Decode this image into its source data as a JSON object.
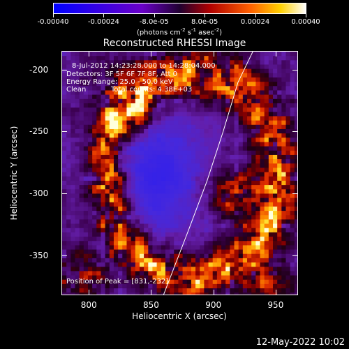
{
  "colorbar": {
    "ticks": [
      "-0.00040",
      "-0.00024",
      "-8.0e-05",
      "8.0e-05",
      "0.00024",
      "0.00040"
    ],
    "units_main": "(photons cm",
    "units_sup1": "-2",
    "units_mid1": " s",
    "units_sup2": "-1",
    "units_mid2": " asec",
    "units_sup3": "-2",
    "units_end": ")",
    "range": [
      -0.0004,
      0.0004
    ]
  },
  "header": {
    "timestamp": "12-May-2022 10:02"
  },
  "chart_data": {
    "type": "heatmap",
    "title": "Reconstructed RHESSI Image",
    "xlabel": "Heliocentric X (arcsec)",
    "ylabel": "Heliocentric Y (arcsec)",
    "xlim": [
      778,
      968
    ],
    "ylim": [
      -382,
      -185
    ],
    "xticks": [
      800,
      850,
      900,
      950
    ],
    "yticks": [
      -200,
      -250,
      -300,
      -350
    ],
    "annotations": {
      "time_range": "8-Jul-2012 14:23:28.000 to 14:28:04.000",
      "detectors": "Detectors: 3F 5F 6F 7F 8F, Att 0",
      "energy": "Energy Range: 25.0 - 50.0 keV",
      "method": "Clean",
      "counts": "Total counts: 4.38E+03",
      "peak": "Position of Peak = [831,-232]"
    },
    "peak": [
      831,
      -232
    ],
    "limb_curve": [
      [
        860,
        -382
      ],
      [
        880,
        -330
      ],
      [
        895,
        -290
      ],
      [
        908,
        -250
      ],
      [
        920,
        -210
      ],
      [
        932,
        -185
      ]
    ]
  }
}
